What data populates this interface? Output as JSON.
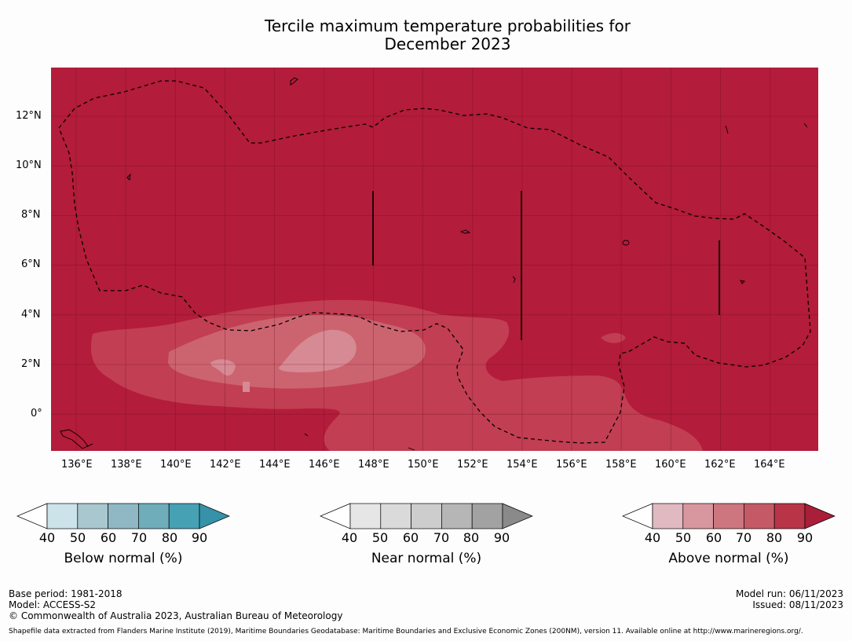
{
  "title": {
    "line1": "Tercile maximum temperature probabilities for",
    "line2": "December 2023"
  },
  "map": {
    "longitude_labels": [
      "136°E",
      "138°E",
      "140°E",
      "142°E",
      "144°E",
      "146°E",
      "148°E",
      "150°E",
      "152°E",
      "154°E",
      "156°E",
      "158°E",
      "160°E",
      "162°E",
      "164°E"
    ],
    "latitude_labels": [
      "12°N",
      "10°N",
      "8°N",
      "6°N",
      "4°N",
      "2°N",
      "0°"
    ],
    "colors": {
      "above_90": "#b31c3a",
      "above_80": "#c23e52",
      "above_70": "#cc6470",
      "above_60": "#d68a93",
      "boundary": "#000000"
    },
    "legend_panels": [
      {
        "label": "Below normal (%)",
        "ticks": [
          "40",
          "50",
          "60",
          "70",
          "80",
          "90"
        ],
        "colors": [
          "#cbe3e9",
          "#a8c7cf",
          "#8fb8c4",
          "#6fadbb",
          "#47a1b4",
          "#3592a8"
        ]
      },
      {
        "label": "Near normal (%)",
        "ticks": [
          "40",
          "50",
          "60",
          "70",
          "80",
          "90"
        ],
        "colors": [
          "#e6e6e6",
          "#dadada",
          "#cdcdcd",
          "#b6b6b6",
          "#a2a2a2",
          "#8a8a8a"
        ]
      },
      {
        "label": "Above normal (%)",
        "ticks": [
          "40",
          "50",
          "60",
          "70",
          "80",
          "90"
        ],
        "colors": [
          "#e1b9c1",
          "#d8979f",
          "#cd7680",
          "#c55a67",
          "#b83547",
          "#a91e38"
        ]
      }
    ]
  },
  "footer": {
    "base_period": "Base period: 1981-2018",
    "model": "Model: ACCESS-S2",
    "copyright": "© Commonwealth of Australia 2023, Australian Bureau of Meteorology",
    "model_run": "Model run: 06/11/2023",
    "issued": "Issued: 08/11/2023",
    "shapefile": "Shapefile data extracted from Flanders Marine Institute (2019), Maritime Boundaries Geodatabase: Maritime Boundaries and Exclusive Economic Zones (200NM), version 11. Available online at http://www.marineregions.org/."
  }
}
